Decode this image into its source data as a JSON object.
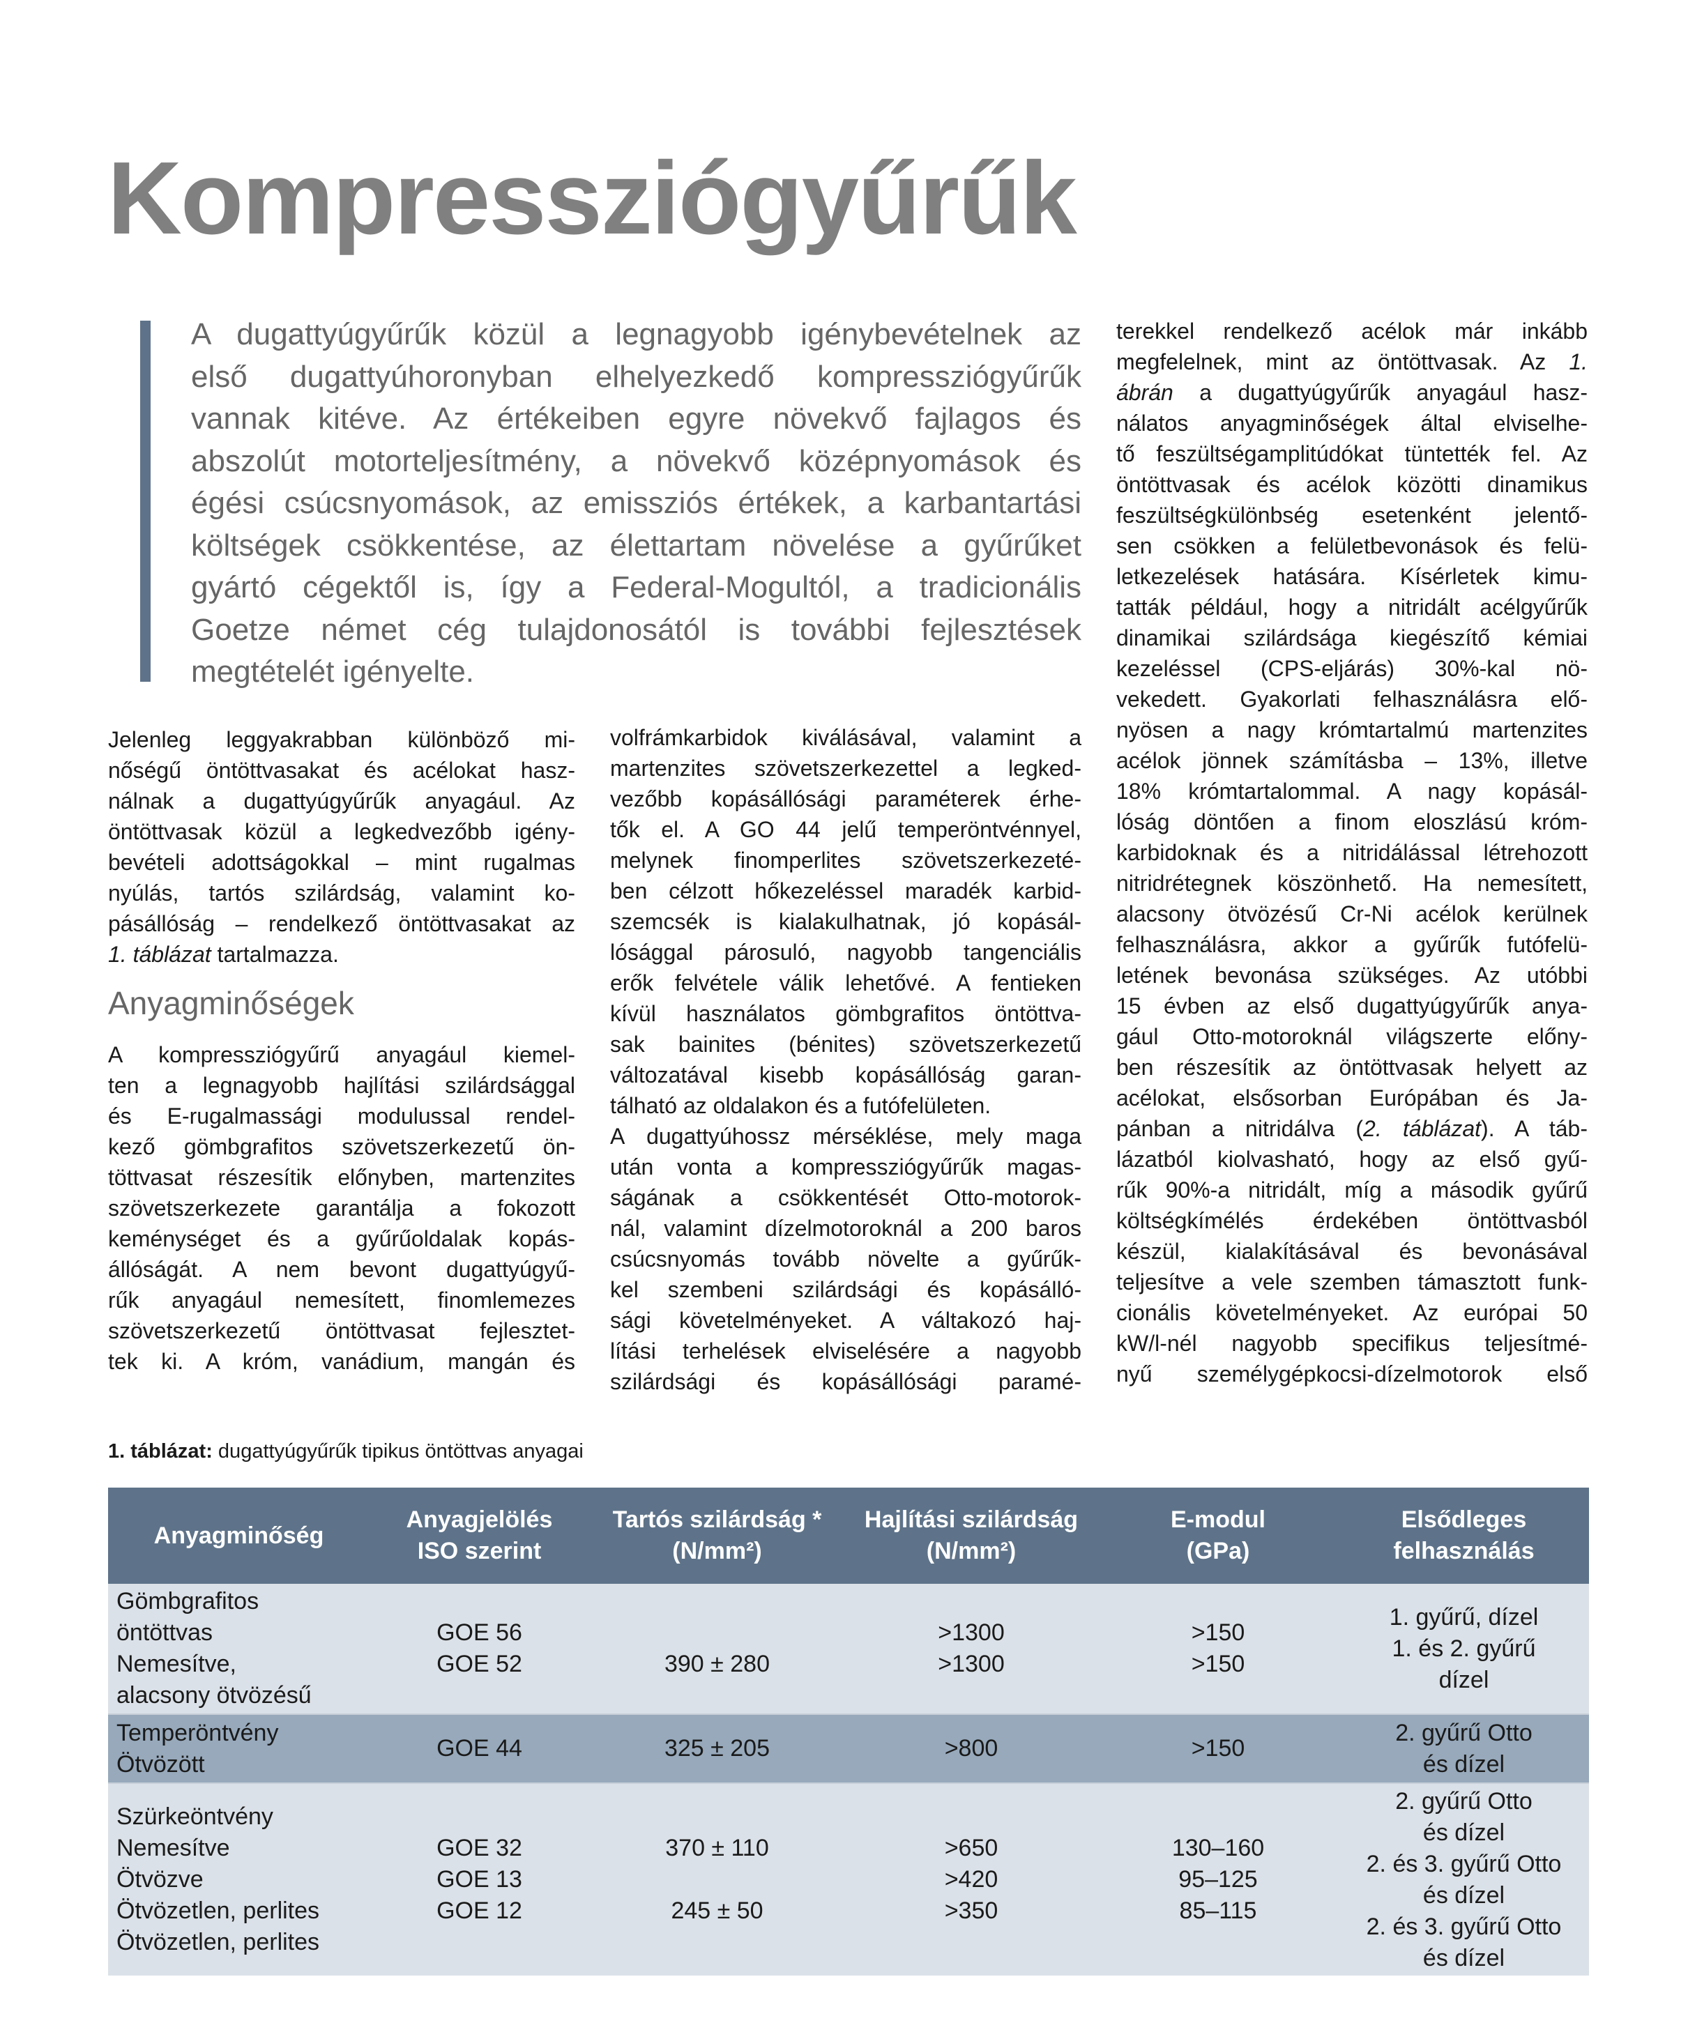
{
  "title": "Kompressziógyűrűk",
  "colors": {
    "accent": "#5e7389",
    "title": "#808080",
    "row_light": "#dbe1e8",
    "row_dark": "#97a9bb"
  },
  "intro_lines": [
    "A dugattyúgyűrűk közül a legnagyobb igénybevételnek az",
    "első dugattyúhoronyban elhelyezkedő kompressziógyűrűk",
    "vannak kitéve. Az értékeiben egyre növekvő fajlagos és",
    "abszolút motorteljesítmény, a növekvő középnyomások és",
    "égési csúcsnyomások, az emissziós értékek, a karbantartási",
    "költségek csökkentése, az élettartam növelése a gyűrűket",
    "gyártó cégektől is, így a Federal-Mogultól, a tradicionális",
    "Goetze német cég tulajdonosától is további fejlesztések",
    "megtételét igényelte."
  ],
  "col1": {
    "p1": [
      "Jelenleg leggyakrabban különböző mi-",
      "nőségű öntöttvasakat és acélokat hasz-",
      "nálnak a dugattyúgyűrűk anyagául. Az",
      "öntöttvasak közül a legkedvezőbb igény-",
      "bevételi adottságokkal – mint rugalmas",
      "nyúlás, tartós szilárdság, valamint ko-",
      "pásállóság – rendelkező öntöttvasakat az",
      {
        "parts": [
          {
            "t": "1. táblázat",
            "i": true
          },
          {
            "t": " tartalmazza."
          }
        ]
      }
    ],
    "heading": "Anyagminőségek",
    "p2": [
      "A kompressziógyűrű anyagául kiemel-",
      "ten a legnagyobb hajlítási szilárdsággal",
      "és E-rugalmassági modulussal rendel-",
      "kező gömbgrafitos szövetszerkezetű ön-",
      "töttvasat részesítik előnyben, martenzites",
      "szövetszerkezete garantálja a fokozott",
      "keménységet és a gyűrűoldalak kopás-",
      "állóságát. A nem bevont dugattyúgyű-",
      "rűk anyagául nemesített, finomlemezes",
      "szövetszerkezetű öntöttvasat fejlesztet-",
      "tek ki. A króm, vanádium, mangán és"
    ]
  },
  "col2": {
    "p1": [
      "volfrámkarbidok kiválásával, valamint a",
      "martenzites szövetszerkezettel a legked-",
      "vezőbb kopásállósági paraméterek érhe-",
      "tők el. A GO 44 jelű temperöntvénnyel,",
      "melynek finomperlites szövetszerkezeté-",
      "ben célzott hőkezeléssel maradék karbid-",
      "szemcsék is kialakulhatnak, jó kopásál-",
      "lósággal párosuló, nagyobb tangenciális",
      "erők felvétele válik lehetővé. A fentieken",
      "kívül használatos gömbgrafitos öntöttva-",
      "sak bainites (bénites) szövetszerkezetű",
      "változatával kisebb kopásállóság garan-",
      "tálható az oldalakon és a futófelületen."
    ],
    "p2": [
      "A dugattyúhossz mérséklése, mely maga",
      "után vonta a kompressziógyűrűk magas-",
      "ságának a csökkentését Otto-motorok-",
      "nál, valamint dízelmotoroknál a 200 baros",
      "csúcsnyomás tovább növelte a gyűrűk-",
      "kel szembeni szilárdsági és kopásálló-",
      "sági követelményeket. A váltakozó haj-",
      "lítási terhelések elviselésére a nagyobb",
      "szilárdsági és kopásállósági paramé-"
    ]
  },
  "col3": {
    "p1": [
      "terekkel rendelkező acélok már inkább",
      {
        "parts": [
          {
            "t": "megfelelnek, mint az öntöttvasak. Az "
          },
          {
            "t": "1.",
            "i": true
          }
        ]
      },
      {
        "parts": [
          {
            "t": "ábrán",
            "i": true
          },
          {
            "t": " a dugattyúgyűrűk anyagául hasz-"
          }
        ]
      },
      "nálatos anyagminőségek által elviselhe-",
      "tő feszültségamplitúdókat tüntették fel. Az",
      "öntöttvasak és acélok közötti dinamikus",
      "feszültségkülönbség esetenként jelentő-",
      "sen csökken a felületbevonások és felü-",
      "letkezelések hatására. Kísérletek kimu-",
      "tatták például, hogy a nitridált acélgyűrűk",
      "dinamikai szilárdsága kiegészítő kémiai",
      "kezeléssel (CPS-eljárás) 30%-kal nö-",
      "vekedett. Gyakorlati felhasználásra elő-",
      "nyösen a nagy krómtartalmú martenzites",
      "acélok jönnek számításba – 13%, illetve",
      "18% krómtartalommal. A nagy kopásál-",
      "lóság döntően a finom eloszlású króm-",
      "karbidoknak és a nitridálással létrehozott",
      "nitridrétegnek köszönhető. Ha nemesített,",
      "alacsony ötvözésű Cr-Ni acélok kerülnek",
      "felhasználásra, akkor a gyűrűk futófelü-",
      "letének bevonása szükséges. Az utóbbi",
      "15 évben az első dugattyúgyűrűk anya-",
      "gául Otto-motoroknál világszerte előny-",
      "ben részesítik az öntöttvasak helyett az",
      "acélokat, elsősorban Európában és Ja-",
      {
        "parts": [
          {
            "t": "pánban a nitridálva ("
          },
          {
            "t": "2. táblázat",
            "i": true
          },
          {
            "t": "). A táb-"
          }
        ]
      },
      "lázatból kiolvasható, hogy az első gyű-",
      "rűk 90%-a nitridált, míg a második gyűrű",
      "költségkímélés érdekében öntöttvasból",
      "készül, kialakításával és bevonásával",
      "teljesítve a vele szemben támasztott funk-",
      "cionális követelményeket. Az európai 50",
      "kW/l-nél nagyobb specifikus teljesítmé-",
      "nyű személygépkocsi-dízelmotorok első"
    ]
  },
  "table": {
    "caption_label": "1. táblázat:",
    "caption_text": " dugattyúgyűrűk tipikus öntöttvas anyagai",
    "headers": [
      [
        "Anyagminőség"
      ],
      [
        "Anyagjelölés",
        "ISO szerint"
      ],
      [
        "Tartós szilárdság *",
        "(N/mm²)"
      ],
      [
        "Hajlítási szilárdság",
        "(N/mm²)"
      ],
      [
        "E-modul",
        "(GPa)"
      ],
      [
        "Elsődleges",
        "felhasználás"
      ]
    ],
    "rows": [
      [
        [
          "Gömbgrafitos",
          "öntöttvas",
          "Nemesítve,",
          "alacsony ötvözésű"
        ],
        [
          "",
          "GOE 56",
          "GOE 52",
          ""
        ],
        [
          "",
          "",
          "390 ± 280",
          ""
        ],
        [
          "",
          ">1300",
          ">1300",
          ""
        ],
        [
          "",
          ">150",
          ">150",
          ""
        ],
        [
          "1. gyűrű, dízel",
          "1. és 2. gyűrű",
          "dízel"
        ]
      ],
      [
        [
          "Temperöntvény",
          "Ötvözött"
        ],
        [
          "GOE  44"
        ],
        [
          "325 ± 205"
        ],
        [
          ">800"
        ],
        [
          ">150"
        ],
        [
          "2. gyűrű Otto",
          "és dízel"
        ]
      ],
      [
        [
          "Szürkeöntvény",
          "Nemesítve",
          "Ötvözve",
          "Ötvözetlen, perlites",
          "Ötvözetlen, perlites"
        ],
        [
          "",
          "GOE 32",
          "GOE 13",
          "GOE 12",
          ""
        ],
        [
          "",
          "370 ± 110",
          "",
          "245 ± 50",
          ""
        ],
        [
          "",
          ">650",
          ">420",
          ">350",
          ""
        ],
        [
          "",
          "130–160",
          "95–125",
          "85–115",
          ""
        ],
        [
          "2. gyűrű Otto",
          "és dízel",
          "2. és 3. gyűrű Otto",
          "és dízel",
          "2. és 3. gyűrű Otto",
          "és dízel"
        ]
      ]
    ]
  }
}
